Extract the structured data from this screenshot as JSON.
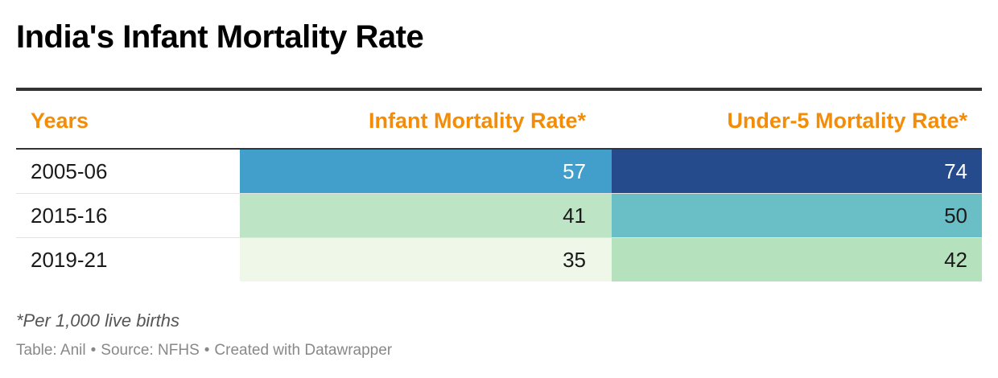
{
  "title": "India's Infant Mortality Rate",
  "chart_data": {
    "type": "table",
    "columns": [
      "Years",
      "Infant Mortality Rate*",
      "Under-5 Mortality Rate*"
    ],
    "rows": [
      {
        "year": "2005-06",
        "imr": 57,
        "u5mr": 74
      },
      {
        "year": "2015-16",
        "imr": 41,
        "u5mr": 50
      },
      {
        "year": "2019-21",
        "imr": 35,
        "u5mr": 42
      }
    ],
    "cell_colors": {
      "imr": [
        "#429fcb",
        "#bde5c5",
        "#eef7e8"
      ],
      "u5mr": [
        "#254b8c",
        "#6abfc7",
        "#b5e2bc"
      ]
    },
    "header_color": "#f48c06"
  },
  "footnote": "*Per 1,000 live births",
  "credits": {
    "table": "Table: Anil",
    "source": "Source: NFHS",
    "created": "Created with Datawrapper",
    "separator": "•"
  }
}
